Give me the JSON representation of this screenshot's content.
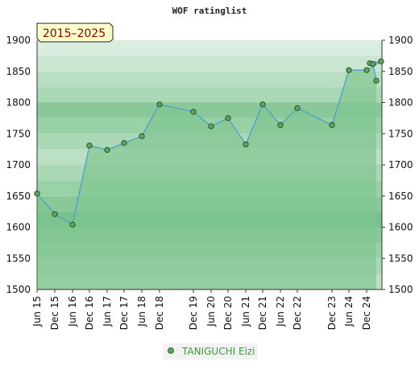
{
  "chart_data": {
    "type": "line",
    "title": "WOF ratinglist",
    "period_label": "2015–2025",
    "xlabel": "",
    "ylabel": "",
    "ylim": [
      1500,
      1900
    ],
    "yticks": [
      1500,
      1550,
      1600,
      1650,
      1700,
      1750,
      1800,
      1850,
      1900
    ],
    "x_tick_labels": [
      "Jun 15",
      "Dec 15",
      "Jun 16",
      "Dec 16",
      "Jun 17",
      "Dec 17",
      "Jun 18",
      "Dec 18",
      "Dec 19",
      "Jun 20",
      "Dec 20",
      "Jun 21",
      "Dec 21",
      "Jun 22",
      "Dec 22",
      "Dec 23",
      "Jun 24",
      "Dec 24"
    ],
    "legend_position": "bottom-center",
    "grid": true,
    "colors": {
      "line": "#4f9fd0",
      "fill": "#7ec48f",
      "marker": "#5aa65a",
      "band_light": "#f1f8f2",
      "band_dark": "#78c28b",
      "badge_bg": "#ffffcc"
    },
    "series": [
      {
        "name": "TANIGUCHI Eizi",
        "points": [
          [
            "Jun 15",
            1654
          ],
          [
            "Dec 15",
            1621
          ],
          [
            "Jun 16",
            1604
          ],
          [
            "Dec 16",
            1731
          ],
          [
            "Jun 17",
            1724
          ],
          [
            "Dec 17",
            1735
          ],
          [
            "Jun 18",
            1746
          ],
          [
            "Dec 18",
            1797
          ],
          [
            "Dec 19",
            1785
          ],
          [
            "Jun 20",
            1762
          ],
          [
            "Dec 20",
            1775
          ],
          [
            "Jun 21",
            1733
          ],
          [
            "Dec 21",
            1797
          ],
          [
            "Jun 22",
            1764
          ],
          [
            "Dec 22",
            1791
          ],
          [
            "Dec 23",
            1764
          ],
          [
            "Jun 24",
            1852
          ],
          [
            "Dec 24",
            1852
          ],
          [
            "Dec 24",
            1866
          ],
          [
            "Dec 24",
            1863
          ],
          [
            "Dec 24",
            1862
          ],
          [
            "Dec 24",
            1835
          ]
        ]
      }
    ]
  }
}
